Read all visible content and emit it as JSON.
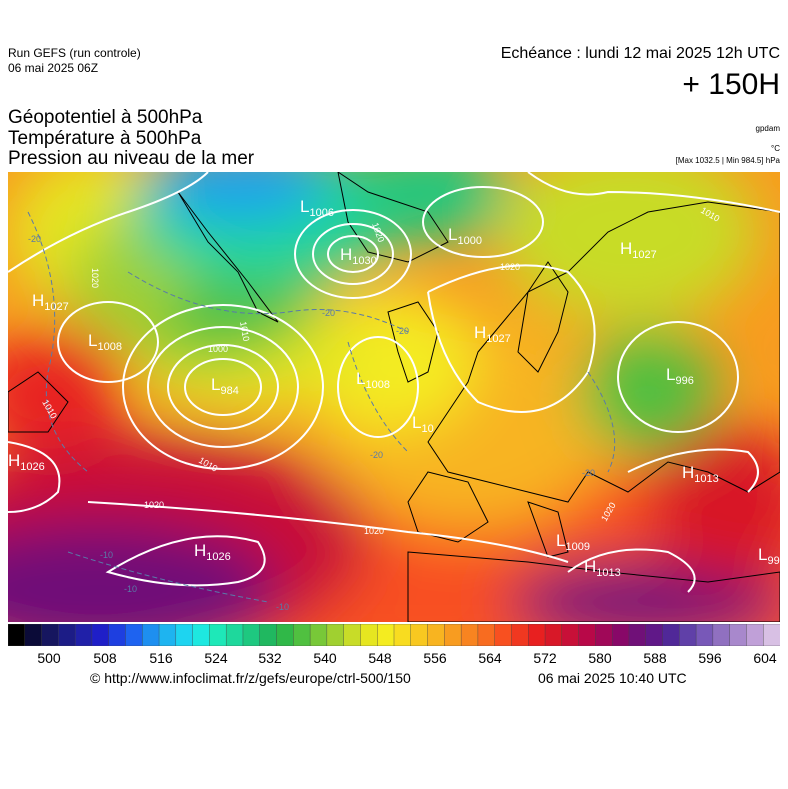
{
  "header": {
    "run_title": "Run GEFS (run controle)",
    "run_date": "06 mai 2025 06Z",
    "echeance": "Echéance : lundi 12 mai 2025 12h UTC",
    "lead_time": "+ 150H"
  },
  "layers": [
    "Géopotentiel à 500hPa",
    "Température à 500hPa",
    "Pression au niveau de la mer"
  ],
  "units": {
    "geopotential": "gpdam",
    "temperature": "°C"
  },
  "extremes": "[Max 1032.5 | Min 984.5] hPa",
  "pressure_centers": [
    {
      "type": "L",
      "value": "1006"
    },
    {
      "type": "L",
      "value": "1000"
    },
    {
      "type": "H",
      "value": "1030"
    },
    {
      "type": "H",
      "value": "1027"
    },
    {
      "type": "H",
      "value": "1027"
    },
    {
      "type": "H",
      "value": "1027"
    },
    {
      "type": "L",
      "value": "1008"
    },
    {
      "type": "L",
      "value": "984"
    },
    {
      "type": "L",
      "value": "1008"
    },
    {
      "type": "L",
      "value": "996"
    },
    {
      "type": "H",
      "value": "1026"
    },
    {
      "type": "H",
      "value": "1026"
    },
    {
      "type": "L",
      "value": "1009"
    },
    {
      "type": "H",
      "value": "1013"
    },
    {
      "type": "H",
      "value": "1013"
    },
    {
      "type": "L",
      "value": "99"
    },
    {
      "type": "L",
      "value": "10"
    }
  ],
  "isobar_labels": [
    "1020",
    "1020",
    "1010",
    "1000",
    "1010",
    "1020",
    "1020",
    "1020",
    "1010",
    "1010",
    "1020"
  ],
  "isotherm_labels": [
    "-20",
    "-20",
    "-20",
    "-20",
    "-20",
    "-10",
    "-10",
    "-10"
  ],
  "colorbar": {
    "labels": [
      "500",
      "508",
      "516",
      "524",
      "532",
      "540",
      "548",
      "556",
      "564",
      "572",
      "580",
      "588",
      "596",
      "604"
    ],
    "colors": [
      "#000000",
      "#0b0b38",
      "#16165f",
      "#1c1c86",
      "#2020a8",
      "#1f1fc8",
      "#1e3fe0",
      "#1e63f0",
      "#1e8ff0",
      "#1eb4f0",
      "#1ed4f0",
      "#1ee8e0",
      "#1ee8b8",
      "#1ed89c",
      "#1ec880",
      "#20b860",
      "#30b848",
      "#50c040",
      "#78c838",
      "#a0d030",
      "#c8dc28",
      "#e6e620",
      "#f4ec20",
      "#f8dc20",
      "#f8c820",
      "#f8b420",
      "#f89c20",
      "#f88420",
      "#f86c20",
      "#f85020",
      "#f03820",
      "#e82020",
      "#d81828",
      "#c81038",
      "#b80848",
      "#a00858",
      "#880868",
      "#701078",
      "#601888",
      "#502898",
      "#6040a8",
      "#7858b8",
      "#9070c0",
      "#a888cc",
      "#c0a0d8",
      "#d8c0e4"
    ]
  },
  "footer": {
    "source": "© http://www.infoclimat.fr/z/gefs/europe/ctrl-500/150",
    "generated": "06 mai 2025 10:40 UTC"
  }
}
